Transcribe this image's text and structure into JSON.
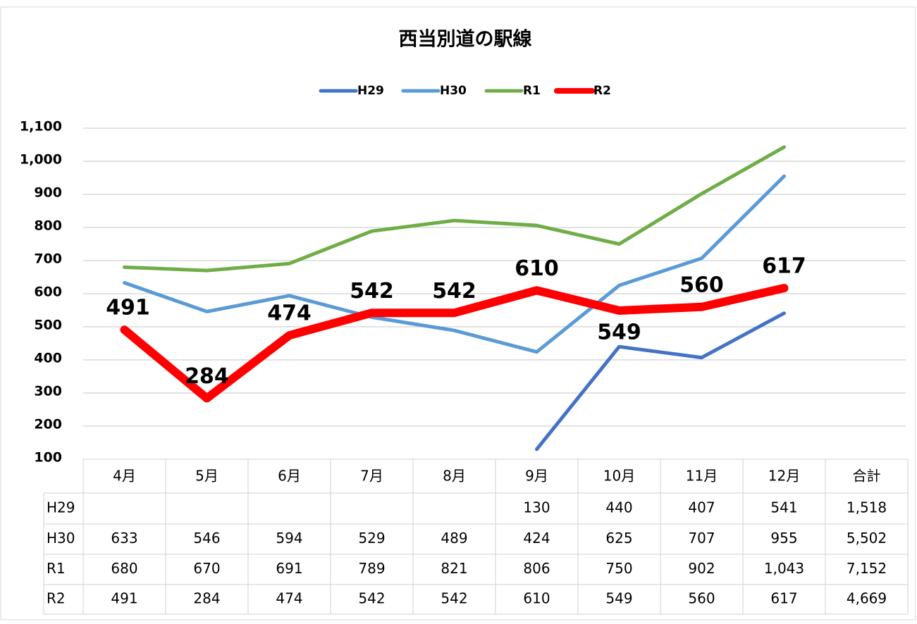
{
  "chart_data": {
    "type": "line",
    "title": "西当別道の駅線",
    "categories": [
      "4月",
      "5月",
      "6月",
      "7月",
      "8月",
      "9月",
      "10月",
      "11月",
      "12月"
    ],
    "total_header": "合計",
    "series": [
      {
        "name": "H29",
        "color": "#4472c4",
        "values": [
          null,
          null,
          null,
          null,
          null,
          130,
          440,
          407,
          541
        ],
        "value_labels": [
          null,
          null,
          null,
          null,
          null,
          "130",
          "440",
          "407",
          "541"
        ],
        "total": 1518,
        "total_label": "1,518"
      },
      {
        "name": "H30",
        "color": "#5b9bd5",
        "values": [
          633,
          546,
          594,
          529,
          489,
          424,
          625,
          707,
          955
        ],
        "value_labels": [
          "633",
          "546",
          "594",
          "529",
          "489",
          "424",
          "625",
          "707",
          "955"
        ],
        "total": 5502,
        "total_label": "5,502"
      },
      {
        "name": "R1",
        "color": "#70ad47",
        "values": [
          680,
          670,
          691,
          789,
          821,
          806,
          750,
          902,
          1043
        ],
        "value_labels": [
          "680",
          "670",
          "691",
          "789",
          "821",
          "806",
          "750",
          "902",
          "1,043"
        ],
        "total": 7152,
        "total_label": "7,152"
      },
      {
        "name": "R2",
        "color": "#ff0000",
        "values": [
          491,
          284,
          474,
          542,
          542,
          610,
          549,
          560,
          617
        ],
        "value_labels": [
          "491",
          "284",
          "474",
          "542",
          "542",
          "610",
          "549",
          "560",
          "617"
        ],
        "total": 4669,
        "total_label": "4,669",
        "data_labels": true
      }
    ],
    "ylim": [
      100,
      1100
    ],
    "yticks": [
      100,
      200,
      300,
      400,
      500,
      600,
      700,
      800,
      900,
      {
        "value": 1000,
        "label": "1,000"
      },
      {
        "value": 1100,
        "label": "1,100"
      }
    ],
    "grid": true,
    "legend": "top"
  }
}
